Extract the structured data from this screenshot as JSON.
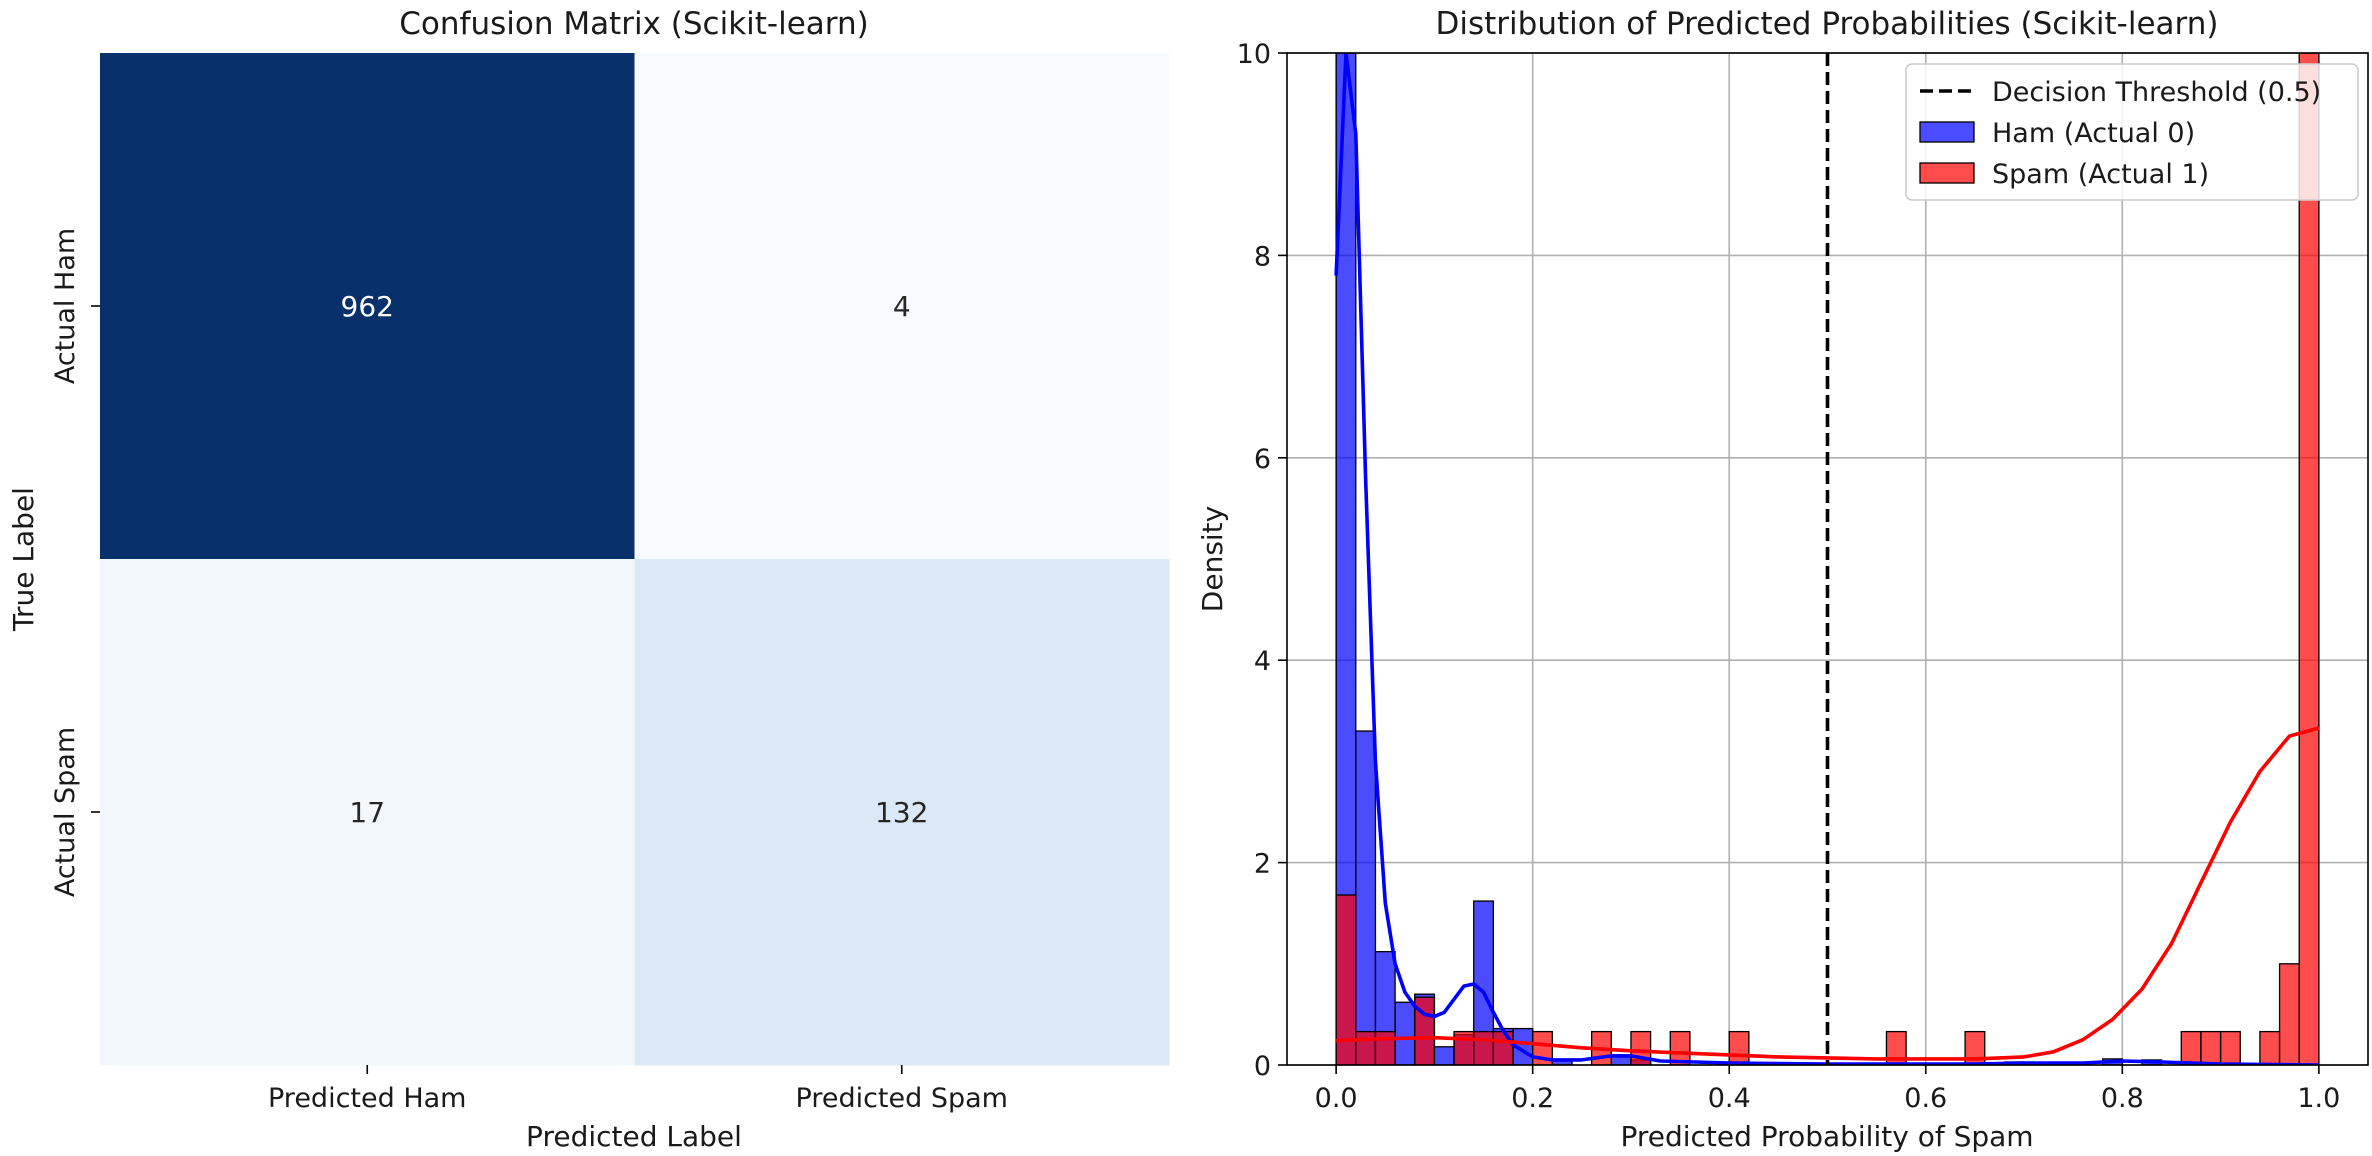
{
  "chart_data": [
    {
      "type": "heatmap",
      "title": "Confusion Matrix (Scikit-learn)",
      "xlabel": "Predicted Label",
      "ylabel": "True Label",
      "x_categories": [
        "Predicted Ham",
        "Predicted Spam"
      ],
      "y_categories": [
        "Actual Ham",
        "Actual Spam"
      ],
      "values": [
        [
          962,
          4
        ],
        [
          17,
          132
        ]
      ],
      "colormap": "Blues",
      "colors": {
        "max": "#08306b",
        "min": "#f7fbff",
        "mid": "#dbe9f6"
      }
    },
    {
      "type": "histogram",
      "title": "Distribution of Predicted Probabilities (Scikit-learn)",
      "xlabel": "Predicted Probability of Spam",
      "ylabel": "Density",
      "xlim": [
        -0.05,
        1.05
      ],
      "ylim": [
        0,
        10
      ],
      "x_ticks": [
        "0.0",
        "0.2",
        "0.4",
        "0.6",
        "0.8",
        "1.0"
      ],
      "y_ticks": [
        "0",
        "2",
        "4",
        "6",
        "8",
        "10"
      ],
      "grid": true,
      "legend_position": "top-right",
      "bin_width": 0.02,
      "threshold": {
        "x": 0.5,
        "label": "Decision Threshold (0.5)",
        "color": "#000000"
      },
      "series": [
        {
          "name": "Ham (Actual 0)",
          "color": "#0000ff",
          "kde_color": "#0000ff",
          "bins": [
            [
              0.0,
              10.0
            ],
            [
              0.02,
              3.3
            ],
            [
              0.04,
              1.12
            ],
            [
              0.06,
              0.62
            ],
            [
              0.08,
              0.7
            ],
            [
              0.1,
              0.18
            ],
            [
              0.12,
              0.3
            ],
            [
              0.14,
              1.62
            ],
            [
              0.16,
              0.36
            ],
            [
              0.18,
              0.36
            ],
            [
              0.22,
              0.05
            ],
            [
              0.28,
              0.1
            ],
            [
              0.3,
              0.05
            ],
            [
              0.68,
              0.03
            ],
            [
              0.78,
              0.06
            ],
            [
              0.82,
              0.05
            ]
          ],
          "kde": [
            [
              0.0,
              7.8
            ],
            [
              0.01,
              10.0
            ],
            [
              0.02,
              9.2
            ],
            [
              0.03,
              5.8
            ],
            [
              0.04,
              3.0
            ],
            [
              0.05,
              1.6
            ],
            [
              0.06,
              1.0
            ],
            [
              0.07,
              0.72
            ],
            [
              0.08,
              0.58
            ],
            [
              0.09,
              0.5
            ],
            [
              0.1,
              0.48
            ],
            [
              0.11,
              0.52
            ],
            [
              0.12,
              0.65
            ],
            [
              0.13,
              0.78
            ],
            [
              0.14,
              0.8
            ],
            [
              0.15,
              0.72
            ],
            [
              0.16,
              0.52
            ],
            [
              0.17,
              0.34
            ],
            [
              0.18,
              0.2
            ],
            [
              0.2,
              0.08
            ],
            [
              0.22,
              0.05
            ],
            [
              0.25,
              0.05
            ],
            [
              0.28,
              0.09
            ],
            [
              0.3,
              0.09
            ],
            [
              0.33,
              0.04
            ],
            [
              0.4,
              0.02
            ],
            [
              0.5,
              0.01
            ],
            [
              0.65,
              0.01
            ],
            [
              0.7,
              0.02
            ],
            [
              0.76,
              0.02
            ],
            [
              0.8,
              0.04
            ],
            [
              0.84,
              0.03
            ],
            [
              0.9,
              0.01
            ],
            [
              1.0,
              0.0
            ]
          ]
        },
        {
          "name": "Spam (Actual 1)",
          "color": "#ff0000",
          "kde_color": "#ff0000",
          "bins": [
            [
              0.0,
              1.68
            ],
            [
              0.02,
              0.33
            ],
            [
              0.04,
              0.33
            ],
            [
              0.08,
              0.67
            ],
            [
              0.12,
              0.33
            ],
            [
              0.14,
              0.33
            ],
            [
              0.16,
              0.33
            ],
            [
              0.2,
              0.33
            ],
            [
              0.26,
              0.33
            ],
            [
              0.3,
              0.33
            ],
            [
              0.34,
              0.33
            ],
            [
              0.4,
              0.33
            ],
            [
              0.56,
              0.33
            ],
            [
              0.64,
              0.33
            ],
            [
              0.86,
              0.33
            ],
            [
              0.88,
              0.33
            ],
            [
              0.9,
              0.33
            ],
            [
              0.94,
              0.33
            ],
            [
              0.96,
              1.0
            ],
            [
              0.98,
              10.0
            ]
          ],
          "kde": [
            [
              0.0,
              0.24
            ],
            [
              0.05,
              0.26
            ],
            [
              0.1,
              0.27
            ],
            [
              0.15,
              0.25
            ],
            [
              0.2,
              0.21
            ],
            [
              0.25,
              0.17
            ],
            [
              0.3,
              0.14
            ],
            [
              0.35,
              0.12
            ],
            [
              0.4,
              0.1
            ],
            [
              0.45,
              0.08
            ],
            [
              0.5,
              0.07
            ],
            [
              0.55,
              0.06
            ],
            [
              0.6,
              0.06
            ],
            [
              0.65,
              0.06
            ],
            [
              0.7,
              0.08
            ],
            [
              0.73,
              0.13
            ],
            [
              0.76,
              0.25
            ],
            [
              0.79,
              0.45
            ],
            [
              0.82,
              0.75
            ],
            [
              0.85,
              1.2
            ],
            [
              0.88,
              1.8
            ],
            [
              0.91,
              2.4
            ],
            [
              0.94,
              2.9
            ],
            [
              0.97,
              3.25
            ],
            [
              1.0,
              3.33
            ]
          ]
        }
      ]
    }
  ]
}
